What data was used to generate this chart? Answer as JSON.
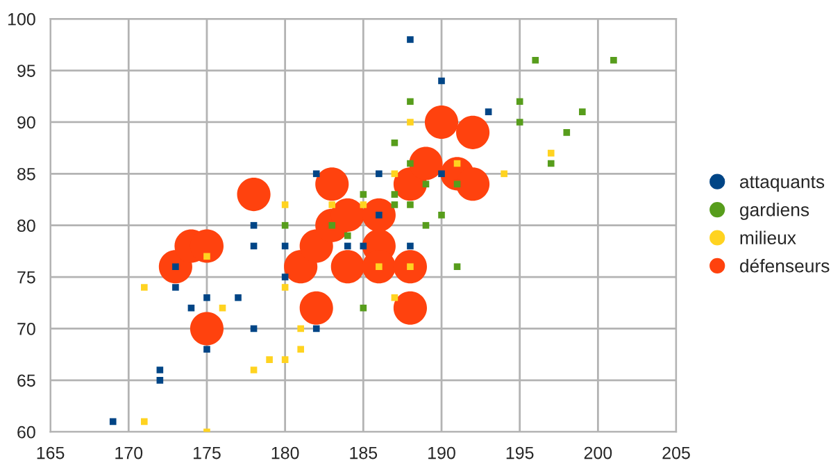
{
  "chart_data": {
    "type": "scatter",
    "xlim": [
      165,
      205
    ],
    "xticks": [
      165,
      170,
      175,
      180,
      185,
      190,
      195,
      200,
      205
    ],
    "ylim": [
      60,
      100
    ],
    "yticks": [
      60,
      65,
      70,
      75,
      80,
      85,
      90,
      95,
      100
    ],
    "grid": true,
    "legend": "right",
    "series": [
      {
        "name": "attaquants",
        "color": "#004586",
        "marker": "square",
        "x": [
          169,
          172,
          172,
          173,
          173,
          174,
          175,
          175,
          177,
          178,
          178,
          178,
          180,
          180,
          182,
          182,
          184,
          185,
          186,
          186,
          188,
          188,
          190,
          190,
          193
        ],
        "values": [
          61,
          66,
          65,
          76,
          74,
          72,
          73,
          68,
          73,
          80,
          78,
          70,
          78,
          75,
          85,
          70,
          78,
          78,
          85,
          81,
          98,
          78,
          94,
          85,
          91
        ]
      },
      {
        "name": "gardiens",
        "color": "#579d1c",
        "marker": "square",
        "x": [
          180,
          183,
          184,
          185,
          185,
          187,
          187,
          187,
          188,
          188,
          188,
          189,
          189,
          190,
          191,
          191,
          195,
          195,
          196,
          197,
          198,
          199,
          201
        ],
        "values": [
          80,
          80,
          79,
          83,
          72,
          88,
          83,
          82,
          92,
          86,
          82,
          84,
          80,
          81,
          84,
          76,
          92,
          90,
          96,
          86,
          89,
          91,
          96
        ]
      },
      {
        "name": "milieux",
        "color": "#ffd320",
        "marker": "square",
        "x": [
          171,
          171,
          175,
          175,
          176,
          178,
          179,
          180,
          180,
          180,
          181,
          181,
          183,
          185,
          186,
          187,
          187,
          188,
          188,
          191,
          194,
          197
        ],
        "values": [
          74,
          61,
          77,
          60,
          72,
          66,
          67,
          82,
          74,
          67,
          70,
          68,
          82,
          82,
          76,
          85,
          73,
          90,
          76,
          86,
          85,
          87
        ]
      },
      {
        "name": "défenseurs",
        "color": "#ff420e",
        "marker": "circle",
        "x": [
          173,
          174,
          175,
          175,
          178,
          181,
          182,
          182,
          183,
          183,
          184,
          184,
          186,
          186,
          186,
          188,
          188,
          188,
          189,
          190,
          191,
          192,
          192
        ],
        "values": [
          76,
          78,
          78,
          70,
          83,
          76,
          78,
          72,
          84,
          80,
          81,
          76,
          81,
          78,
          76,
          84,
          76,
          72,
          86,
          90,
          85,
          89,
          84
        ]
      }
    ]
  }
}
